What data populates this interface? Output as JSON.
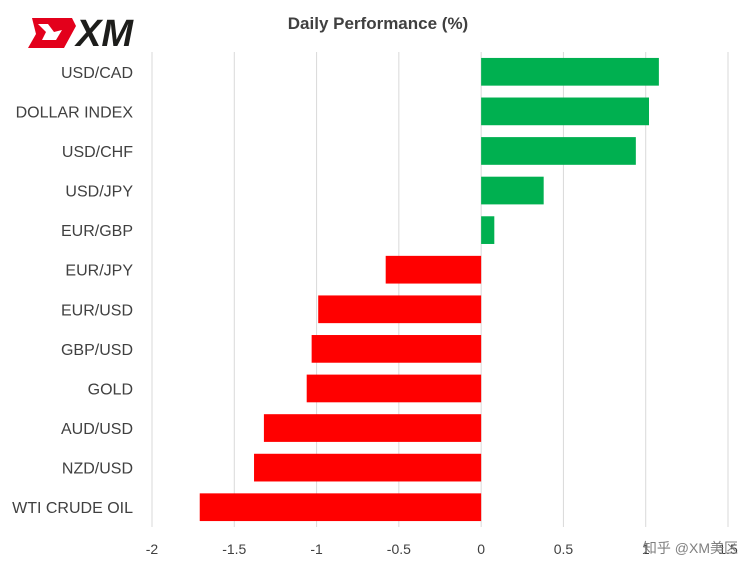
{
  "logo": {
    "text": "XM",
    "colors": {
      "red": "#e3001b",
      "black": "#1d1d1b"
    }
  },
  "watermark": "知乎 @XM美区",
  "chart_data": {
    "type": "bar",
    "orientation": "horizontal",
    "title": "Daily Performance (%)",
    "xlabel": "",
    "ylabel": "",
    "xlim": [
      -2,
      1.5
    ],
    "xticks": [
      "-2",
      "-1.5",
      "-1",
      "-0.5",
      "0",
      "0.5",
      "1",
      "1.5"
    ],
    "grid": "vertical",
    "legend": "none",
    "colors": {
      "positive": "#00b050",
      "negative": "#ff0000",
      "grid": "#d9d9d9"
    },
    "categories": [
      "USD/CAD",
      "DOLLAR INDEX",
      "USD/CHF",
      "USD/JPY",
      "EUR/GBP",
      "EUR/JPY",
      "EUR/USD",
      "GBP/USD",
      "GOLD",
      "AUD/USD",
      "NZD/USD",
      "WTI CRUDE OIL"
    ],
    "values": [
      1.08,
      1.02,
      0.94,
      0.38,
      0.08,
      -0.58,
      -0.99,
      -1.03,
      -1.06,
      -1.32,
      -1.38,
      -1.71
    ]
  }
}
